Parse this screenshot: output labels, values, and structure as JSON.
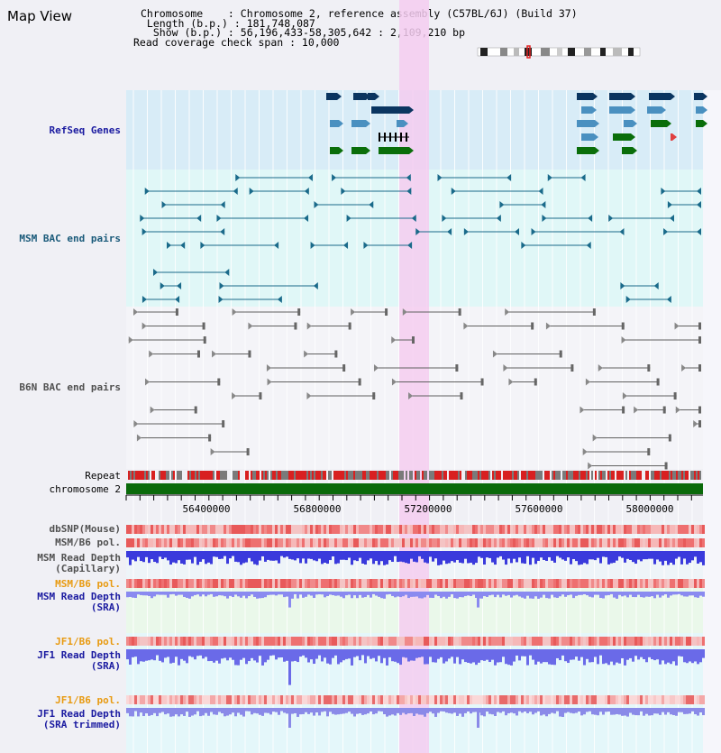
{
  "header": {
    "title": "Map View",
    "chromosome_line": "Chromosome    : Chromosome 2, reference assembly (C57BL/6J) (Build 37)",
    "length_line": " Length (b.p.) : 181,748,087",
    "show_line": "  Show (b.p.) : 56,196,433-58,305,642 : 2,109,210 bp",
    "coverage_line": "Read coverage check span : 10,000"
  },
  "tracks": {
    "refseq": "RefSeq Genes",
    "msm_bac": "MSM BAC end pairs",
    "b6n_bac": "B6N BAC end pairs",
    "repeat": "Repeat",
    "chromosome": "chromosome 2",
    "dbsnp": "dbSNP(Mouse)",
    "msm_pol": "MSM/B6 pol.",
    "msm_depth_cap": "MSM Read Depth\n(Capillary)",
    "msm_pol2": "MSM/B6 pol.",
    "msm_depth_sra": "MSM Read Depth\n(SRA)",
    "jf1_pol": "JF1/B6 pol.",
    "jf1_depth_sra": "JF1 Read Depth\n(SRA)",
    "jf1_pol2": "JF1/B6 pol.",
    "jf1_depth_trim": "JF1 Read Depth\n(SRA trimmed)"
  },
  "axis": {
    "ticks": [
      "56400000",
      "56800000",
      "57200000",
      "57600000",
      "58000000"
    ]
  },
  "colors": {
    "refseq_bg": "#d8ecf7",
    "msm_bg": "#e0f7f7",
    "b6n_bg": "#f4f4f8",
    "highlight": "#f5cdf0",
    "gene_navy": "#0a3560",
    "gene_blue": "#4a90c0",
    "gene_green": "#0a6e0a",
    "msm_line": "#1a6a8a",
    "b6n_line": "#606060",
    "chrom_green": "#0a6a0a",
    "pol_red": "#e04040",
    "depth_blue": "#3a3adc",
    "depth_light": "#8a8af0",
    "label_navy": "#1a1aa0",
    "label_orange": "#e89a10",
    "label_gray": "#505050"
  }
}
